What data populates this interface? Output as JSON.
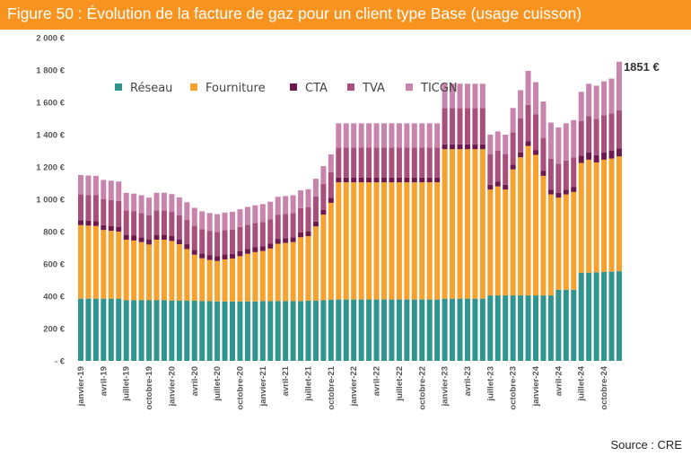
{
  "header": {
    "title": "Figure 50 : Évolution de la facture de gaz pour un client type Base (usage cuisson)",
    "color": "#f7931e"
  },
  "source": "Source : CRE",
  "chart_data": {
    "type": "bar",
    "stacked": true,
    "title": "Figure 50 : Évolution de la facture de gaz pour un client type Base (usage cuisson)",
    "xlabel": "",
    "ylabel": "",
    "ylim": [
      0,
      2000
    ],
    "yticks": [
      0,
      200,
      400,
      600,
      800,
      1000,
      1200,
      1400,
      1600,
      1800,
      2000
    ],
    "ytick_labels": [
      "-  €",
      "200 €",
      "400 €",
      "600 €",
      "800 €",
      "1 000 €",
      "1 200 €",
      "1 400 €",
      "1 600 €",
      "1 800 €",
      "2 000 €"
    ],
    "grid": false,
    "legend_position": "top-left",
    "annotation": "1851 €",
    "x_tick_labels": [
      {
        "index": 0,
        "label": "janvier-19"
      },
      {
        "index": 3,
        "label": "avril-19"
      },
      {
        "index": 6,
        "label": "juillet-19"
      },
      {
        "index": 9,
        "label": "octobre-19"
      },
      {
        "index": 12,
        "label": "janvier-20"
      },
      {
        "index": 15,
        "label": "avril-20"
      },
      {
        "index": 18,
        "label": "juillet-20"
      },
      {
        "index": 21,
        "label": "octobre-20"
      },
      {
        "index": 24,
        "label": "janvier-21"
      },
      {
        "index": 27,
        "label": "avril-21"
      },
      {
        "index": 30,
        "label": "juillet-21"
      },
      {
        "index": 33,
        "label": "octobre-21"
      },
      {
        "index": 36,
        "label": "janvier-22"
      },
      {
        "index": 39,
        "label": "avril-22"
      },
      {
        "index": 42,
        "label": "juillet-22"
      },
      {
        "index": 45,
        "label": "octobre-22"
      },
      {
        "index": 48,
        "label": "janvier-23"
      },
      {
        "index": 51,
        "label": "avril-23"
      },
      {
        "index": 54,
        "label": "juillet-23"
      },
      {
        "index": 57,
        "label": "octobre-23"
      },
      {
        "index": 60,
        "label": "janvier-24"
      },
      {
        "index": 63,
        "label": "avril-24"
      },
      {
        "index": 66,
        "label": "juillet-24"
      },
      {
        "index": 69,
        "label": "octobre-24"
      }
    ],
    "series": [
      {
        "name": "Réseau",
        "color": "#30958f",
        "values": [
          385,
          385,
          385,
          385,
          385,
          385,
          375,
          375,
          375,
          375,
          375,
          375,
          372,
          372,
          372,
          372,
          370,
          370,
          368,
          368,
          368,
          368,
          368,
          368,
          370,
          370,
          370,
          370,
          370,
          370,
          372,
          372,
          375,
          378,
          380,
          380,
          380,
          380,
          380,
          380,
          380,
          380,
          380,
          380,
          380,
          380,
          380,
          380,
          385,
          385,
          385,
          385,
          385,
          385,
          405,
          405,
          405,
          405,
          405,
          405,
          405,
          405,
          405,
          440,
          440,
          440,
          545,
          545,
          548,
          550,
          552,
          555
        ]
      },
      {
        "name": "Fourniture",
        "color": "#f7a12e",
        "values": [
          455,
          452,
          450,
          425,
          420,
          415,
          375,
          370,
          360,
          345,
          375,
          375,
          370,
          350,
          320,
          285,
          265,
          255,
          250,
          260,
          265,
          280,
          295,
          305,
          310,
          325,
          355,
          360,
          365,
          395,
          400,
          460,
          530,
          600,
          725,
          725,
          725,
          725,
          725,
          725,
          725,
          725,
          725,
          725,
          725,
          725,
          725,
          725,
          925,
          925,
          925,
          925,
          925,
          925,
          655,
          675,
          655,
          780,
          855,
          925,
          870,
          740,
          625,
          570,
          590,
          605,
          680,
          700,
          680,
          695,
          700,
          710
        ]
      },
      {
        "name": "CTA",
        "color": "#6e1a4e",
        "values": [
          30,
          30,
          30,
          30,
          30,
          30,
          30,
          30,
          30,
          30,
          30,
          30,
          30,
          30,
          30,
          30,
          30,
          30,
          30,
          30,
          30,
          30,
          30,
          30,
          30,
          30,
          30,
          30,
          30,
          30,
          30,
          30,
          30,
          30,
          30,
          30,
          30,
          30,
          30,
          30,
          30,
          30,
          30,
          30,
          30,
          30,
          30,
          30,
          30,
          30,
          30,
          30,
          30,
          30,
          30,
          30,
          30,
          30,
          30,
          30,
          30,
          30,
          30,
          30,
          30,
          30,
          45,
          45,
          45,
          45,
          50,
          50
        ]
      },
      {
        "name": "TVA",
        "color": "#a84f7c",
        "values": [
          160,
          160,
          160,
          160,
          160,
          160,
          150,
          150,
          150,
          150,
          150,
          150,
          150,
          150,
          150,
          150,
          150,
          150,
          150,
          150,
          150,
          150,
          150,
          150,
          150,
          150,
          150,
          150,
          150,
          150,
          150,
          155,
          160,
          160,
          185,
          185,
          185,
          185,
          185,
          185,
          185,
          185,
          185,
          185,
          185,
          185,
          185,
          185,
          225,
          225,
          225,
          225,
          225,
          225,
          190,
          190,
          190,
          200,
          210,
          225,
          220,
          205,
          190,
          180,
          180,
          185,
          215,
          225,
          225,
          230,
          230,
          235
        ]
      },
      {
        "name": "TICGN",
        "color": "#c884ad",
        "values": [
          120,
          120,
          120,
          120,
          120,
          120,
          110,
          110,
          110,
          110,
          110,
          110,
          110,
          110,
          110,
          110,
          110,
          110,
          110,
          110,
          110,
          110,
          110,
          110,
          110,
          110,
          110,
          110,
          110,
          110,
          110,
          110,
          110,
          110,
          150,
          150,
          150,
          150,
          150,
          150,
          150,
          150,
          150,
          150,
          150,
          150,
          150,
          150,
          150,
          150,
          150,
          150,
          150,
          150,
          120,
          120,
          120,
          150,
          175,
          210,
          200,
          225,
          225,
          225,
          230,
          230,
          180,
          200,
          205,
          210,
          215,
          301
        ]
      }
    ]
  }
}
